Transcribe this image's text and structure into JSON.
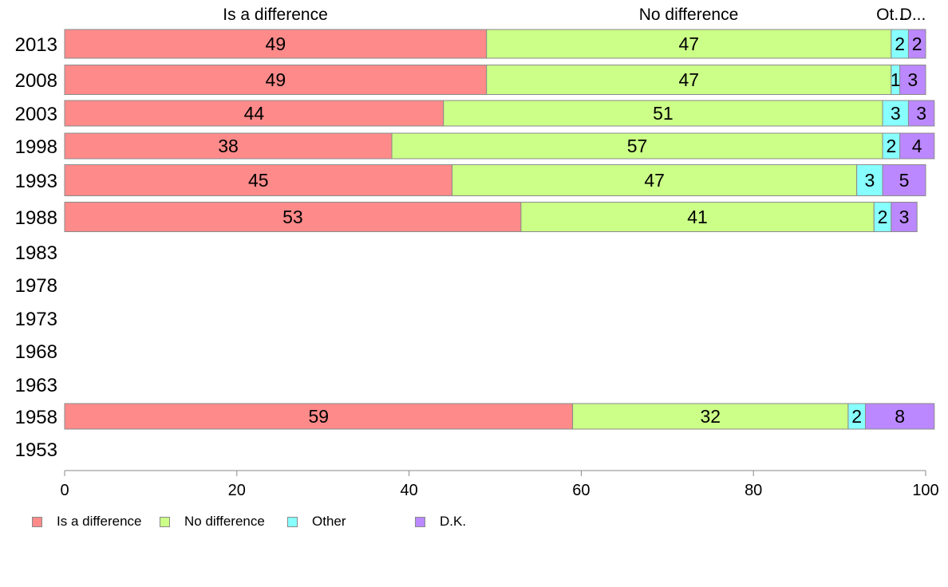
{
  "chart_data": {
    "type": "bar",
    "orientation": "horizontal",
    "stacked": true,
    "categories": [
      "2013",
      "2008",
      "2003",
      "1998",
      "1993",
      "1988",
      "1983",
      "1978",
      "1973",
      "1968",
      "1963",
      "1958",
      "1953"
    ],
    "series": [
      {
        "name": "Is a difference",
        "color": "#ff8a8a",
        "values": [
          49,
          49,
          44,
          38,
          45,
          53,
          null,
          null,
          null,
          null,
          null,
          59,
          null
        ]
      },
      {
        "name": "No difference",
        "color": "#ccff88",
        "values": [
          47,
          47,
          51,
          57,
          47,
          41,
          null,
          null,
          null,
          null,
          null,
          32,
          null
        ]
      },
      {
        "name": "Other",
        "color": "#88ffff",
        "values": [
          2,
          1,
          3,
          2,
          3,
          2,
          null,
          null,
          null,
          null,
          null,
          2,
          null
        ]
      },
      {
        "name": "D.K.",
        "color": "#bb88ff",
        "values": [
          2,
          3,
          3,
          4,
          5,
          3,
          null,
          null,
          null,
          null,
          null,
          8,
          null
        ]
      }
    ],
    "top_labels": [
      "Is a difference",
      "No difference",
      "Ot...",
      "D..."
    ],
    "xlim": [
      0,
      100
    ],
    "xticks": [
      0,
      20,
      40,
      60,
      80,
      100
    ],
    "grid": false,
    "legend_position": "bottom-left"
  }
}
